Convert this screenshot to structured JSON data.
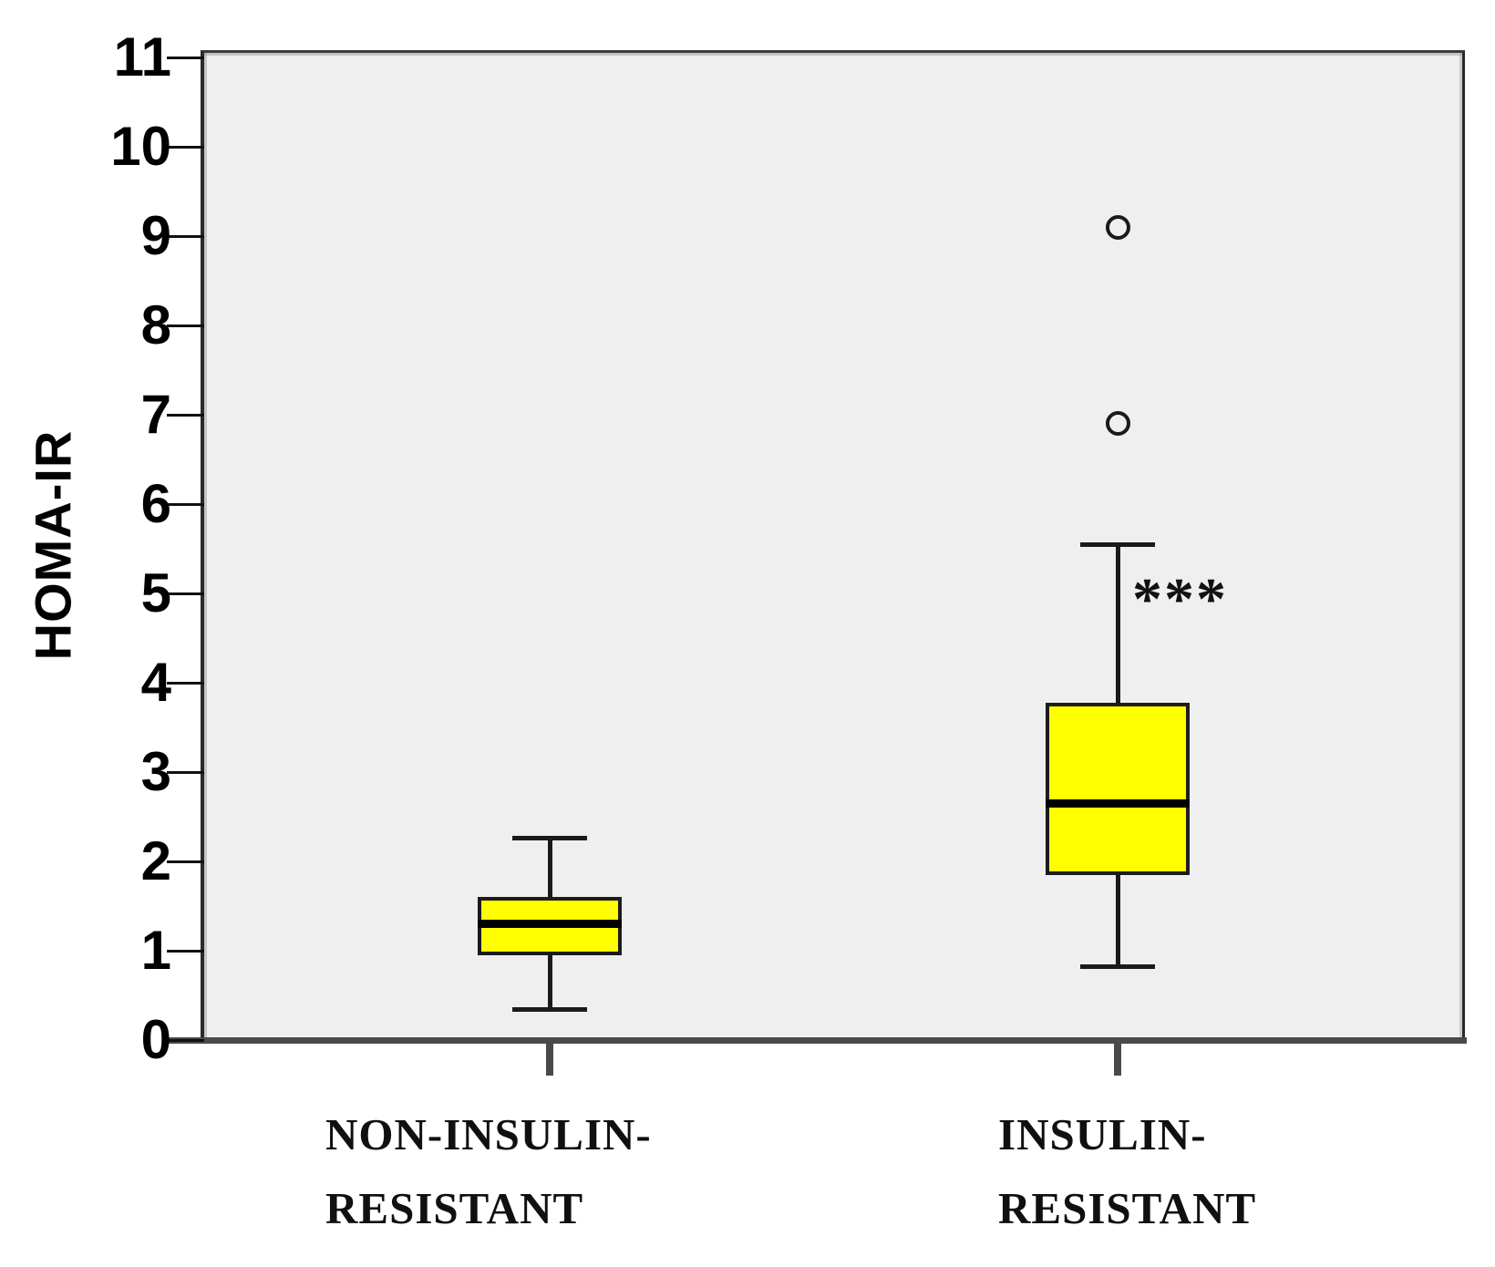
{
  "figure": {
    "background": "#ffffff",
    "plot_background": "#efefef",
    "frame_color": "#3c3c3c",
    "axis_color": "#4a4a4a",
    "tick_color": "#111111",
    "box_fill": "#ffff00",
    "box_border": "#1c1c1c"
  },
  "chart_data": {
    "type": "boxplot",
    "title": "",
    "xlabel": "",
    "ylabel": "HOMA-IR",
    "ylim": [
      0,
      11
    ],
    "yticks": [
      0,
      1,
      2,
      3,
      4,
      5,
      6,
      7,
      8,
      9,
      10,
      11
    ],
    "grid": false,
    "legend": "none",
    "categories": [
      "NON-INSULIN-RESISTANT",
      "INSULIN-RESISTANT"
    ],
    "category_label_lines": [
      [
        "NON-INSULIN-",
        "RESISTANT"
      ],
      [
        "INSULIN-",
        "RESISTANT"
      ]
    ],
    "series": [
      {
        "name": "NON-INSULIN-RESISTANT",
        "whisker_low": 0.35,
        "q1": 0.95,
        "median": 1.3,
        "q3": 1.6,
        "whisker_high": 2.27,
        "outliers": []
      },
      {
        "name": "INSULIN-RESISTANT",
        "whisker_low": 0.83,
        "q1": 1.85,
        "median": 2.65,
        "q3": 3.78,
        "whisker_high": 5.55,
        "outliers": [
          6.9,
          9.1
        ]
      }
    ],
    "annotation": {
      "text": "***",
      "series_index": 1,
      "value": 5.0
    }
  }
}
